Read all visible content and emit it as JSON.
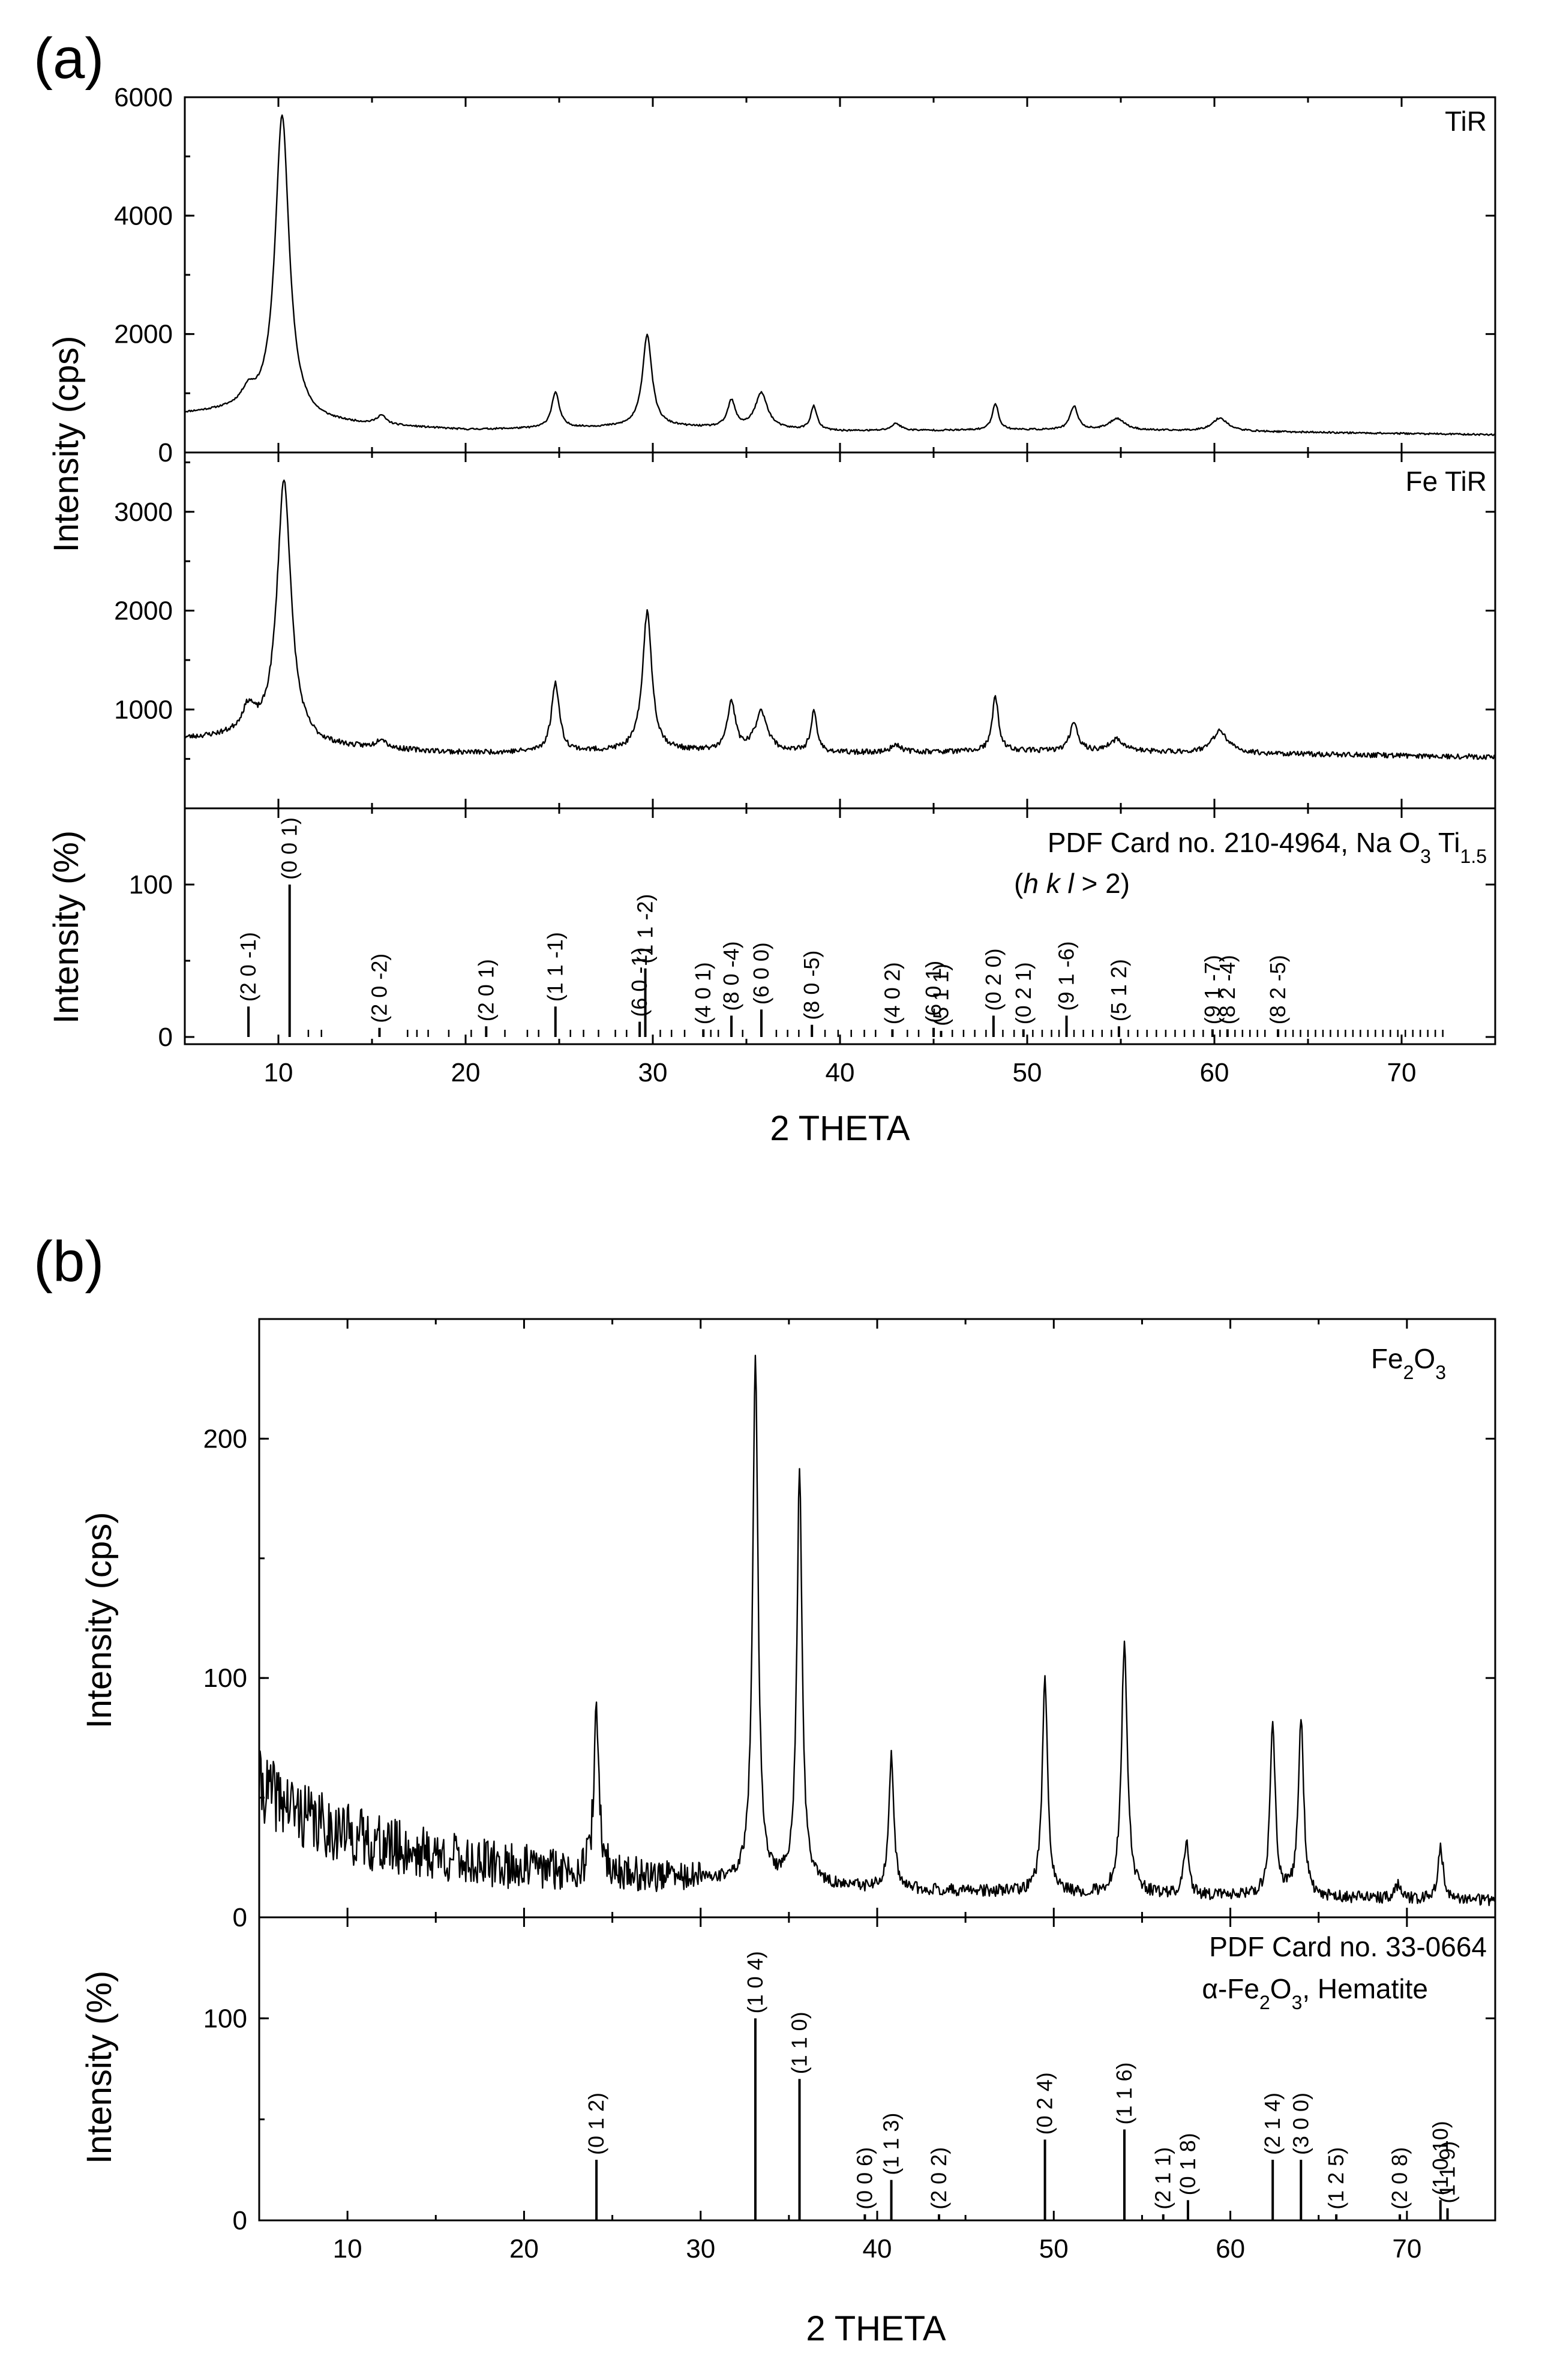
{
  "chart_data": [
    {
      "panel": "(a)",
      "type": "line",
      "xlabel": "2 THETA",
      "ylabel": "Intensity (cps)",
      "xlim": [
        5,
        75
      ],
      "xticks": [
        "10",
        "20",
        "30",
        "40",
        "50",
        "60",
        "70"
      ],
      "subplots": [
        {
          "label": "TiR",
          "ylim": [
            0,
            6000
          ],
          "yticks": [
            "0",
            "2000",
            "4000",
            "6000"
          ],
          "baseline": [
            [
              5,
              650
            ],
            [
              8,
              700
            ],
            [
              12,
              500
            ],
            [
              20,
              380
            ],
            [
              30,
              440
            ],
            [
              40,
              360
            ],
            [
              50,
              380
            ],
            [
              60,
              360
            ],
            [
              75,
              300
            ]
          ],
          "peaks": [
            [
              8.4,
              250,
              0.4
            ],
            [
              10.2,
              5100,
              0.45
            ],
            [
              15.5,
              150,
              0.3
            ],
            [
              24.8,
              600,
              0.25
            ],
            [
              29.7,
              1550,
              0.3
            ],
            [
              34.2,
              450,
              0.25
            ],
            [
              35.8,
              600,
              0.4
            ],
            [
              38.6,
              400,
              0.2
            ],
            [
              43.0,
              120,
              0.3
            ],
            [
              48.3,
              450,
              0.2
            ],
            [
              52.5,
              400,
              0.25
            ],
            [
              54.8,
              200,
              0.5
            ],
            [
              60.3,
              220,
              0.5
            ]
          ]
        },
        {
          "label": "Fe TiR",
          "ylim": [
            0,
            3600
          ],
          "yticks": [
            "1000",
            "2000",
            "3000"
          ],
          "baseline": [
            [
              5,
              700
            ],
            [
              8,
              720
            ],
            [
              12,
              620
            ],
            [
              20,
              560
            ],
            [
              30,
              580
            ],
            [
              40,
              560
            ],
            [
              50,
              580
            ],
            [
              60,
              560
            ],
            [
              75,
              520
            ]
          ],
          "peaks": [
            [
              8.4,
              250,
              0.4
            ],
            [
              10.3,
              2650,
              0.45
            ],
            [
              15.5,
              100,
              0.3
            ],
            [
              24.8,
              700,
              0.25
            ],
            [
              29.7,
              1400,
              0.3
            ],
            [
              34.2,
              500,
              0.25
            ],
            [
              35.8,
              400,
              0.4
            ],
            [
              38.6,
              400,
              0.2
            ],
            [
              43.0,
              80,
              0.3
            ],
            [
              48.3,
              550,
              0.2
            ],
            [
              52.5,
              300,
              0.25
            ],
            [
              54.8,
              120,
              0.5
            ],
            [
              60.3,
              220,
              0.5
            ]
          ]
        },
        {
          "label": "PDF Card no. 210-4964, Na O",
          "label_sub1": "3",
          "label_mid": " Ti",
          "label_sub2": "1.5",
          "label_line2_a": "(",
          "label_line2_hkl": "h k l",
          "label_line2_b": " > 2)",
          "ylabel": "Intensity (%)",
          "ylim": [
            0,
            150
          ],
          "yticks": [
            "0",
            "100"
          ],
          "sticks": [
            [
              8.4,
              20,
              "(2 0 -1)"
            ],
            [
              10.6,
              100,
              "(0 0 1)"
            ],
            [
              15.4,
              6,
              "(2 0 -2)"
            ],
            [
              21.1,
              7,
              "(2 0 1)"
            ],
            [
              24.8,
              20,
              "(1 1 -1)"
            ],
            [
              29.3,
              10,
              "(6 0 -1)"
            ],
            [
              29.6,
              45,
              "(1 1 -2)"
            ],
            [
              32.7,
              5,
              "(4 0 1)"
            ],
            [
              34.2,
              14,
              "(8 0 -4)"
            ],
            [
              35.8,
              18,
              "(6 0 0)"
            ],
            [
              38.5,
              8,
              "(8 0 -5)"
            ],
            [
              42.8,
              5,
              "(4 0 2)"
            ],
            [
              45.0,
              6,
              "(6 0 1)"
            ],
            [
              45.4,
              4,
              "(5 1 1)"
            ],
            [
              48.2,
              14,
              "(0 2 0)"
            ],
            [
              49.8,
              5,
              "(0 2 1)"
            ],
            [
              52.1,
              14,
              "(9 1 -6)"
            ],
            [
              54.9,
              7,
              "(5 1 2)"
            ],
            [
              59.9,
              5,
              "(9 1 -7)"
            ],
            [
              60.7,
              5,
              "(8 2 -4)"
            ],
            [
              63.4,
              5,
              "(8 2 -5)"
            ]
          ],
          "minor_stick_positions": [
            11.6,
            12.3,
            16.9,
            17.4,
            18.0,
            19.1,
            20.3,
            22.1,
            23.3,
            23.9,
            25.6,
            26.3,
            27.1,
            28.0,
            28.6,
            30.4,
            31.0,
            31.7,
            33.1,
            33.5,
            34.8,
            36.6,
            37.2,
            37.8,
            39.2,
            39.9,
            40.6,
            41.3,
            41.9,
            43.6,
            44.2,
            46.0,
            46.6,
            47.2,
            47.8,
            48.7,
            49.3,
            50.3,
            50.8,
            51.3,
            51.7,
            52.5,
            53.0,
            53.5,
            54.0,
            54.5,
            55.4,
            55.9,
            56.4,
            56.9,
            57.4,
            57.9,
            58.4,
            58.9,
            59.4,
            60.3,
            61.1,
            61.5,
            61.9,
            62.3,
            62.7,
            63.8,
            64.2,
            64.6,
            65.0,
            65.4,
            65.8,
            66.2,
            66.6,
            67.0,
            67.4,
            67.8,
            68.2,
            68.6,
            69.0,
            69.4,
            69.8,
            70.2,
            70.6,
            71.0,
            71.4,
            71.8,
            72.2
          ]
        }
      ]
    },
    {
      "panel": "(b)",
      "type": "line",
      "xlabel": "2 THETA",
      "ylabel": "Intensity (cps)",
      "xlim": [
        5,
        75
      ],
      "xticks": [
        "10",
        "20",
        "30",
        "40",
        "50",
        "60",
        "70"
      ],
      "subplots": [
        {
          "label": "Fe",
          "label_sub1": "2",
          "label_mid": "O",
          "label_sub2": "3",
          "ylim": [
            0,
            250
          ],
          "yticks": [
            "0",
            "100",
            "200"
          ],
          "baseline": [
            [
              5,
              55
            ],
            [
              8,
              40
            ],
            [
              12,
              30
            ],
            [
              18,
              22
            ],
            [
              25,
              18
            ],
            [
              30,
              16
            ],
            [
              40,
              12
            ],
            [
              50,
              10
            ],
            [
              60,
              9
            ],
            [
              75,
              7
            ]
          ],
          "peaks": [
            [
              24.1,
              65,
              0.18
            ],
            [
              33.1,
              220,
              0.18
            ],
            [
              35.6,
              170,
              0.18
            ],
            [
              40.8,
              55,
              0.16
            ],
            [
              49.5,
              90,
              0.18
            ],
            [
              54.0,
              105,
              0.2
            ],
            [
              57.5,
              22,
              0.16
            ],
            [
              62.4,
              70,
              0.18
            ],
            [
              64.0,
              75,
              0.18
            ],
            [
              69.5,
              6,
              0.2
            ],
            [
              71.9,
              22,
              0.18
            ]
          ]
        },
        {
          "label": "PDF Card no. 33-0664",
          "label_line2_a": "α-Fe",
          "label_line2_sub1": "2",
          "label_line2_mid": "O",
          "label_line2_sub2": "3",
          "label_line2_b": ", Hematite",
          "ylabel": "Intensity (%)",
          "ylim": [
            0,
            150
          ],
          "yticks": [
            "0",
            "100"
          ],
          "sticks": [
            [
              24.1,
              30,
              "(0 1 2)"
            ],
            [
              33.1,
              100,
              "(1 0 4)"
            ],
            [
              35.6,
              70,
              "(1 1 0)"
            ],
            [
              39.3,
              3,
              "(0 0 6)"
            ],
            [
              40.8,
              20,
              "(1 1 3)"
            ],
            [
              43.5,
              3,
              "(2 0 2)"
            ],
            [
              49.5,
              40,
              "(0 2 4)"
            ],
            [
              54.0,
              45,
              "(1 1 6)"
            ],
            [
              56.2,
              3,
              "(2 1 1)"
            ],
            [
              57.6,
              10,
              "(0 1 8)"
            ],
            [
              62.4,
              30,
              "(2 1 4)"
            ],
            [
              64.0,
              30,
              "(3 0 0)"
            ],
            [
              66.0,
              3,
              "(1 2 5)"
            ],
            [
              69.6,
              3,
              "(2 0 8)"
            ],
            [
              71.9,
              10,
              "(1 0 10)"
            ],
            [
              72.3,
              6,
              "(1 1 9)"
            ]
          ]
        }
      ]
    }
  ]
}
